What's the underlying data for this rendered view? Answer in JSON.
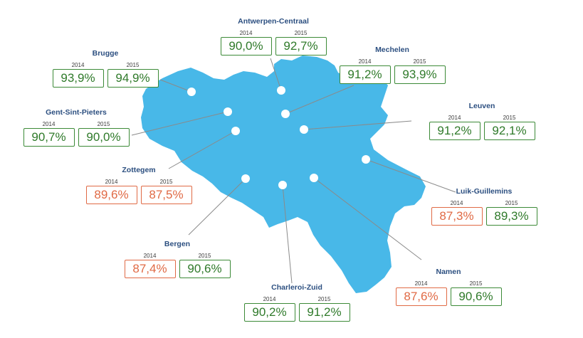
{
  "colors": {
    "country_fill": "#48b8e8",
    "leader_line": "#8a8a8a",
    "marker": "#ffffff",
    "good": "#2f7a2a",
    "bad": "#e06a45"
  },
  "stations": [
    {
      "id": "antwerpen-centraal",
      "name": "Antwerpen-Centraal",
      "y2014_label": "2014",
      "y2015_label": "2015",
      "v2014": "90,0%",
      "v2015": "92,7%",
      "s2014": "good",
      "s2015": "good"
    },
    {
      "id": "brugge",
      "name": "Brugge",
      "y2014_label": "2014",
      "y2015_label": "2015",
      "v2014": "93,9%",
      "v2015": "94,9%",
      "s2014": "good",
      "s2015": "good"
    },
    {
      "id": "mechelen",
      "name": "Mechelen",
      "y2014_label": "2014",
      "y2015_label": "2015",
      "v2014": "91,2%",
      "v2015": "93,9%",
      "s2014": "good",
      "s2015": "good"
    },
    {
      "id": "gent-sint-pieters",
      "name": "Gent-Sint-Pieters",
      "y2014_label": "2014",
      "y2015_label": "2015",
      "v2014": "90,7%",
      "v2015": "90,0%",
      "s2014": "good",
      "s2015": "good"
    },
    {
      "id": "leuven",
      "name": "Leuven",
      "y2014_label": "2014",
      "y2015_label": "2015",
      "v2014": "91,2%",
      "v2015": "92,1%",
      "s2014": "good",
      "s2015": "good"
    },
    {
      "id": "zottegem",
      "name": "Zottegem",
      "y2014_label": "2014",
      "y2015_label": "2015",
      "v2014": "89,6%",
      "v2015": "87,5%",
      "s2014": "bad",
      "s2015": "bad"
    },
    {
      "id": "luik-guillemins",
      "name": "Luik-Guillemins",
      "y2014_label": "2014",
      "y2015_label": "2015",
      "v2014": "87,3%",
      "v2015": "89,3%",
      "s2014": "bad",
      "s2015": "good"
    },
    {
      "id": "bergen",
      "name": "Bergen",
      "y2014_label": "2014",
      "y2015_label": "2015",
      "v2014": "87,4%",
      "v2015": "90,6%",
      "s2014": "bad",
      "s2015": "good"
    },
    {
      "id": "namen",
      "name": "Namen",
      "y2014_label": "2014",
      "y2015_label": "2015",
      "v2014": "87,6%",
      "v2015": "90,6%",
      "s2014": "bad",
      "s2015": "good"
    },
    {
      "id": "charleroi-zuid",
      "name": "Charleroi-Zuid",
      "y2014_label": "2014",
      "y2015_label": "2015",
      "v2014": "90,2%",
      "v2015": "91,2%",
      "s2014": "good",
      "s2015": "good"
    }
  ]
}
